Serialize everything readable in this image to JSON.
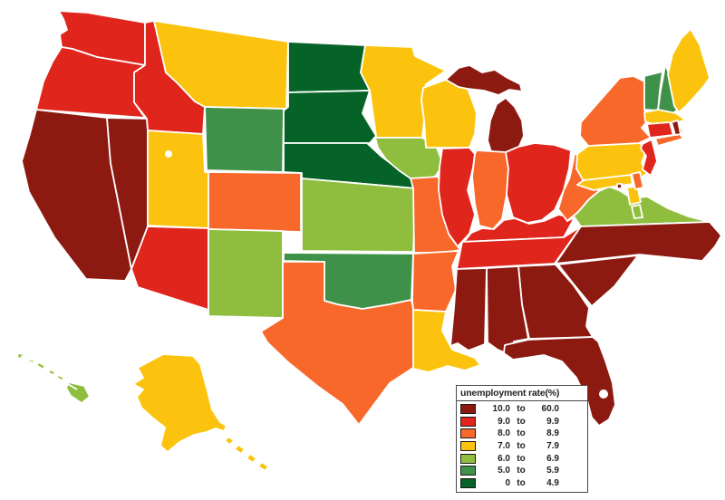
{
  "image": {
    "background_color": "#ffffff"
  },
  "legend": {
    "title": "unemployment rate(%)",
    "border_color": "#4a4a4a",
    "bands": [
      {
        "range": "10.0 to 60.0",
        "from": "10.0",
        "word": "to",
        "to": "60.0",
        "color": "#8C1A11"
      },
      {
        "range": "9.0 to 9.9",
        "from": "9.0",
        "word": "to",
        "to": "9.9",
        "color": "#E0251C"
      },
      {
        "range": "8.0 to 8.9",
        "from": "8.0",
        "word": "to",
        "to": "8.9",
        "color": "#F8682B"
      },
      {
        "range": "7.0 to 7.9",
        "from": "7.0",
        "word": "to",
        "to": "7.9",
        "color": "#FBC30D"
      },
      {
        "range": "6.0 to 6.9",
        "from": "6.0",
        "word": "to",
        "to": "6.9",
        "color": "#8FBE3F"
      },
      {
        "range": "5.0 to 5.9",
        "from": "5.0",
        "word": "to",
        "to": "5.9",
        "color": "#3F9149"
      },
      {
        "range": "0 to 4.9",
        "from": "0",
        "word": "to",
        "to": "4.9",
        "color": "#066327"
      }
    ]
  },
  "map": {
    "state_border_color": "#ffffff",
    "inset_border_color": "#a8a8a8",
    "water_color": "#ffffff",
    "states": [
      {
        "id": "WA",
        "name": "Washington",
        "band_index": 1,
        "range": "9.0 to 9.9"
      },
      {
        "id": "OR",
        "name": "Oregon",
        "band_index": 1,
        "range": "9.0 to 9.9"
      },
      {
        "id": "CA",
        "name": "California",
        "band_index": 0,
        "range": "10.0 to 60.0"
      },
      {
        "id": "NV",
        "name": "Nevada",
        "band_index": 0,
        "range": "10.0 to 60.0"
      },
      {
        "id": "ID",
        "name": "Idaho",
        "band_index": 1,
        "range": "9.0 to 9.9"
      },
      {
        "id": "MT",
        "name": "Montana",
        "band_index": 3,
        "range": "7.0 to 7.9"
      },
      {
        "id": "WY",
        "name": "Wyoming",
        "band_index": 5,
        "range": "5.0 to 5.9"
      },
      {
        "id": "UT",
        "name": "Utah",
        "band_index": 3,
        "range": "7.0 to 7.9"
      },
      {
        "id": "CO",
        "name": "Colorado",
        "band_index": 2,
        "range": "8.0 to 8.9"
      },
      {
        "id": "AZ",
        "name": "Arizona",
        "band_index": 1,
        "range": "9.0 to 9.9"
      },
      {
        "id": "NM",
        "name": "New Mexico",
        "band_index": 4,
        "range": "6.0 to 6.9"
      },
      {
        "id": "ND",
        "name": "North Dakota",
        "band_index": 6,
        "range": "0 to 4.9"
      },
      {
        "id": "SD",
        "name": "South Dakota",
        "band_index": 6,
        "range": "0 to 4.9"
      },
      {
        "id": "NE",
        "name": "Nebraska",
        "band_index": 6,
        "range": "0 to 4.9"
      },
      {
        "id": "KS",
        "name": "Kansas",
        "band_index": 4,
        "range": "6.0 to 6.9"
      },
      {
        "id": "OK",
        "name": "Oklahoma",
        "band_index": 5,
        "range": "5.0 to 5.9"
      },
      {
        "id": "TX",
        "name": "Texas",
        "band_index": 2,
        "range": "8.0 to 8.9"
      },
      {
        "id": "MN",
        "name": "Minnesota",
        "band_index": 3,
        "range": "7.0 to 7.9"
      },
      {
        "id": "IA",
        "name": "Iowa",
        "band_index": 4,
        "range": "6.0 to 6.9"
      },
      {
        "id": "MO",
        "name": "Missouri",
        "band_index": 2,
        "range": "8.0 to 8.9"
      },
      {
        "id": "AR",
        "name": "Arkansas",
        "band_index": 2,
        "range": "8.0 to 8.9"
      },
      {
        "id": "LA",
        "name": "Louisiana",
        "band_index": 3,
        "range": "7.0 to 7.9"
      },
      {
        "id": "WI",
        "name": "Wisconsin",
        "band_index": 3,
        "range": "7.0 to 7.9"
      },
      {
        "id": "MI",
        "name": "Michigan",
        "band_index": 0,
        "range": "10.0 to 60.0"
      },
      {
        "id": "IL",
        "name": "Illinois",
        "band_index": 1,
        "range": "9.0 to 9.9"
      },
      {
        "id": "IN",
        "name": "Indiana",
        "band_index": 2,
        "range": "8.0 to 8.9"
      },
      {
        "id": "OH",
        "name": "Ohio",
        "band_index": 1,
        "range": "9.0 to 9.9"
      },
      {
        "id": "KY",
        "name": "Kentucky",
        "band_index": 1,
        "range": "9.0 to 9.9"
      },
      {
        "id": "TN",
        "name": "Tennessee",
        "band_index": 1,
        "range": "9.0 to 9.9"
      },
      {
        "id": "MS",
        "name": "Mississippi",
        "band_index": 0,
        "range": "10.0 to 60.0"
      },
      {
        "id": "AL",
        "name": "Alabama",
        "band_index": 0,
        "range": "10.0 to 60.0"
      },
      {
        "id": "GA",
        "name": "Georgia",
        "band_index": 0,
        "range": "10.0 to 60.0"
      },
      {
        "id": "FL",
        "name": "Florida",
        "band_index": 0,
        "range": "10.0 to 60.0"
      },
      {
        "id": "SC",
        "name": "South Carolina",
        "band_index": 0,
        "range": "10.0 to 60.0"
      },
      {
        "id": "NC",
        "name": "North Carolina",
        "band_index": 0,
        "range": "10.0 to 60.0"
      },
      {
        "id": "VA",
        "name": "Virginia",
        "band_index": 4,
        "range": "6.0 to 6.9"
      },
      {
        "id": "WV",
        "name": "West Virginia",
        "band_index": 2,
        "range": "8.0 to 8.9"
      },
      {
        "id": "PA",
        "name": "Pennsylvania",
        "band_index": 3,
        "range": "7.0 to 7.9"
      },
      {
        "id": "NY",
        "name": "New York",
        "band_index": 2,
        "range": "8.0 to 8.9"
      },
      {
        "id": "NJ",
        "name": "New Jersey",
        "band_index": 1,
        "range": "9.0 to 9.9"
      },
      {
        "id": "DE",
        "name": "Delaware",
        "band_index": 2,
        "range": "8.0 to 8.9"
      },
      {
        "id": "MD",
        "name": "Maryland",
        "band_index": 3,
        "range": "7.0 to 7.9"
      },
      {
        "id": "DC",
        "name": "District of Columbia",
        "band_index": 0,
        "range": "10.0 to 60.0"
      },
      {
        "id": "VT",
        "name": "Vermont",
        "band_index": 5,
        "range": "5.0 to 5.9"
      },
      {
        "id": "NH",
        "name": "New Hampshire",
        "band_index": 5,
        "range": "5.0 to 5.9"
      },
      {
        "id": "ME",
        "name": "Maine",
        "band_index": 3,
        "range": "7.0 to 7.9"
      },
      {
        "id": "MA",
        "name": "Massachusetts",
        "band_index": 3,
        "range": "7.0 to 7.9"
      },
      {
        "id": "CT",
        "name": "Connecticut",
        "band_index": 1,
        "range": "9.0 to 9.9"
      },
      {
        "id": "RI",
        "name": "Rhode Island",
        "band_index": 0,
        "range": "10.0 to 60.0"
      },
      {
        "id": "AK",
        "name": "Alaska",
        "band_index": 3,
        "range": "7.0 to 7.9"
      },
      {
        "id": "HI",
        "name": "Hawaii",
        "band_index": 4,
        "range": "6.0 to 6.9"
      }
    ]
  }
}
